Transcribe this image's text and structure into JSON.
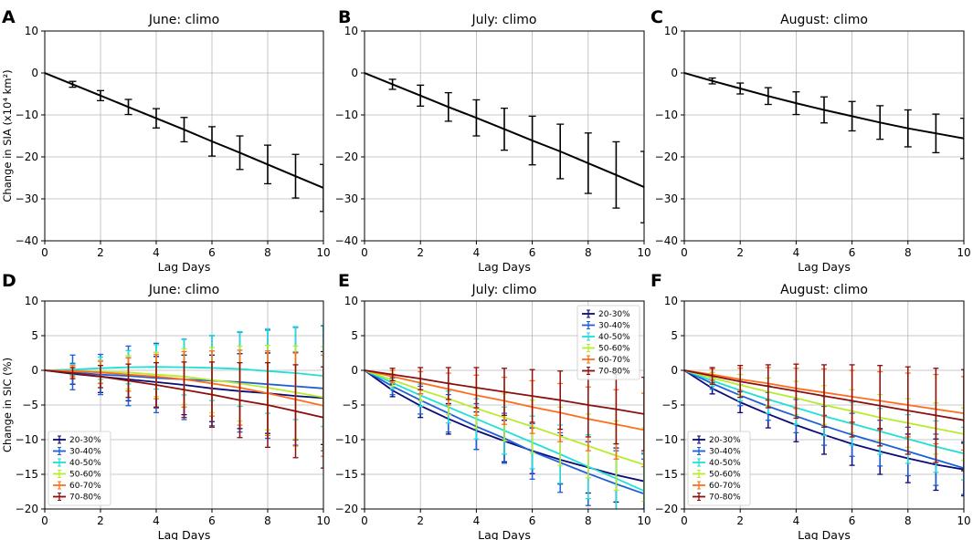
{
  "chart_data": [
    {
      "id": "A",
      "panel_label": "A",
      "type": "line",
      "title": "June: climo",
      "xlabel": "Lag Days",
      "ylabel": "Change in SIA (x10⁴ km²)",
      "xlim": [
        0,
        10
      ],
      "ylim": [
        -40,
        10
      ],
      "xticks": [
        "0",
        "2",
        "4",
        "6",
        "8",
        "10"
      ],
      "yticks": [
        "10",
        "0",
        "−10",
        "−20",
        "−30",
        "−40"
      ],
      "series": [
        {
          "name": "climo",
          "color": "#000000",
          "x": [
            0,
            1,
            2,
            3,
            4,
            5,
            6,
            7,
            8,
            9,
            10
          ],
          "y": [
            0,
            -2.7,
            -5.4,
            -8.1,
            -10.8,
            -13.5,
            -16.3,
            -19.0,
            -21.8,
            -24.6,
            -27.4
          ],
          "err": [
            0,
            0.7,
            1.2,
            1.8,
            2.3,
            2.9,
            3.5,
            4.0,
            4.6,
            5.2,
            5.6
          ]
        }
      ]
    },
    {
      "id": "B",
      "panel_label": "B",
      "type": "line",
      "title": "July: climo",
      "xlabel": "Lag Days",
      "ylabel": "",
      "xlim": [
        0,
        10
      ],
      "ylim": [
        -40,
        10
      ],
      "xticks": [
        "0",
        "2",
        "4",
        "6",
        "8",
        "10"
      ],
      "yticks": [
        "10",
        "0",
        "−10",
        "−20",
        "−30",
        "−40"
      ],
      "series": [
        {
          "name": "climo",
          "color": "#000000",
          "x": [
            0,
            1,
            2,
            3,
            4,
            5,
            6,
            7,
            8,
            9,
            10
          ],
          "y": [
            0,
            -2.7,
            -5.4,
            -8.1,
            -10.7,
            -13.4,
            -16.1,
            -18.7,
            -21.5,
            -24.3,
            -27.2
          ],
          "err": [
            0,
            1.2,
            2.5,
            3.4,
            4.3,
            5.0,
            5.8,
            6.5,
            7.2,
            7.9,
            8.5
          ]
        }
      ]
    },
    {
      "id": "C",
      "panel_label": "C",
      "type": "line",
      "title": "August: climo",
      "xlabel": "Lag Days",
      "ylabel": "",
      "xlim": [
        0,
        10
      ],
      "ylim": [
        -40,
        10
      ],
      "xticks": [
        "0",
        "2",
        "4",
        "6",
        "8",
        "10"
      ],
      "yticks": [
        "10",
        "0",
        "−10",
        "−20",
        "−30",
        "−40"
      ],
      "series": [
        {
          "name": "climo",
          "color": "#000000",
          "x": [
            0,
            1,
            2,
            3,
            4,
            5,
            6,
            7,
            8,
            9,
            10
          ],
          "y": [
            0,
            -1.9,
            -3.7,
            -5.5,
            -7.2,
            -8.8,
            -10.3,
            -11.8,
            -13.2,
            -14.4,
            -15.6
          ],
          "err": [
            0,
            0.7,
            1.3,
            2.0,
            2.7,
            3.1,
            3.5,
            4.0,
            4.4,
            4.6,
            4.8
          ]
        }
      ]
    },
    {
      "id": "D",
      "panel_label": "D",
      "type": "line",
      "title": "June: climo",
      "xlabel": "Lag Days",
      "ylabel": "Change in SIC (%)",
      "xlim": [
        0,
        10
      ],
      "ylim": [
        -20,
        10
      ],
      "xticks": [
        "0",
        "2",
        "4",
        "6",
        "8",
        "10"
      ],
      "yticks": [
        "10",
        "5",
        "0",
        "−5",
        "−10",
        "−15",
        "−20"
      ],
      "legend": "lower-left",
      "series": [
        {
          "name": "20-30%",
          "color": "#0b0b7a",
          "x": [
            0,
            1,
            2,
            3,
            4,
            5,
            6,
            7,
            8,
            9,
            10
          ],
          "y": [
            0,
            -0.5,
            -0.9,
            -1.3,
            -1.7,
            -2.1,
            -2.6,
            -3.0,
            -3.3,
            -3.7,
            -4.0
          ],
          "err": [
            0,
            1.5,
            2.3,
            3.1,
            3.7,
            4.3,
            4.8,
            5.4,
            5.8,
            6.3,
            6.7
          ]
        },
        {
          "name": "30-40%",
          "color": "#1e5fd8",
          "x": [
            0,
            1,
            2,
            3,
            4,
            5,
            6,
            7,
            8,
            9,
            10
          ],
          "y": [
            0,
            -0.3,
            -0.6,
            -0.8,
            -1.1,
            -1.3,
            -1.5,
            -1.7,
            -2.0,
            -2.3,
            -2.6
          ],
          "err": [
            0,
            2.5,
            2.9,
            4.3,
            5.0,
            5.8,
            6.5,
            7.2,
            7.8,
            8.5,
            9.0
          ]
        },
        {
          "name": "40-50%",
          "color": "#1fe0d6",
          "x": [
            0,
            1,
            2,
            3,
            4,
            5,
            6,
            7,
            8,
            9,
            10
          ],
          "y": [
            0,
            0.1,
            0.3,
            0.45,
            0.5,
            0.45,
            0.35,
            0.2,
            -0.1,
            -0.4,
            -0.8
          ],
          "err": [
            0,
            0.8,
            1.6,
            2.4,
            3.2,
            4.0,
            4.7,
            5.4,
            6.1,
            6.7,
            7.3
          ]
        },
        {
          "name": "50-60%",
          "color": "#b7ec2b",
          "x": [
            0,
            1,
            2,
            3,
            4,
            5,
            6,
            7,
            8,
            9,
            10
          ],
          "y": [
            0,
            -0.1,
            -0.2,
            -0.3,
            -0.6,
            -0.9,
            -1.4,
            -1.9,
            -2.5,
            -3.2,
            -3.9
          ],
          "err": [
            0,
            0.8,
            1.6,
            2.4,
            3.2,
            4.0,
            4.7,
            5.4,
            6.1,
            6.7,
            7.3
          ]
        },
        {
          "name": "60-70%",
          "color": "#ff6d1a",
          "x": [
            0,
            1,
            2,
            3,
            4,
            5,
            6,
            7,
            8,
            9,
            10
          ],
          "y": [
            0,
            -0.1,
            -0.3,
            -0.6,
            -0.9,
            -1.3,
            -1.9,
            -2.5,
            -3.3,
            -4.2,
            -5.1
          ],
          "err": [
            0,
            0.8,
            1.6,
            2.4,
            3.2,
            4.0,
            4.7,
            5.4,
            6.1,
            6.7,
            7.3
          ]
        },
        {
          "name": "70-80%",
          "color": "#8c0f0f",
          "x": [
            0,
            1,
            2,
            3,
            4,
            5,
            6,
            7,
            8,
            9,
            10
          ],
          "y": [
            0,
            -0.4,
            -0.9,
            -1.5,
            -2.1,
            -2.8,
            -3.5,
            -4.3,
            -5.0,
            -5.9,
            -6.8
          ],
          "err": [
            0,
            0.8,
            1.6,
            2.4,
            3.2,
            4.0,
            4.7,
            5.4,
            6.1,
            6.7,
            7.3
          ]
        }
      ]
    },
    {
      "id": "E",
      "panel_label": "E",
      "type": "line",
      "title": "July: climo",
      "xlabel": "Lag Days",
      "ylabel": "",
      "xlim": [
        0,
        10
      ],
      "ylim": [
        -20,
        10
      ],
      "xticks": [
        "0",
        "2",
        "4",
        "6",
        "8",
        "10"
      ],
      "yticks": [
        "10",
        "5",
        "0",
        "−5",
        "−10",
        "−15",
        "−20"
      ],
      "legend": "top-right",
      "series": [
        {
          "name": "20-30%",
          "color": "#0b0b7a",
          "x": [
            0,
            1,
            2,
            3,
            4,
            5,
            6,
            7,
            8,
            9,
            10
          ],
          "y": [
            0,
            -2.9,
            -5.1,
            -7.0,
            -8.7,
            -10.2,
            -11.6,
            -12.9,
            -14.0,
            -15.1,
            -16.0
          ],
          "err": [
            0,
            0.9,
            1.7,
            2.2,
            2.7,
            3.0,
            3.3,
            3.5,
            3.7,
            3.9,
            4.0
          ]
        },
        {
          "name": "30-40%",
          "color": "#1e5fd8",
          "x": [
            0,
            1,
            2,
            3,
            4,
            5,
            6,
            7,
            8,
            9,
            10
          ],
          "y": [
            0,
            -2.3,
            -4.3,
            -6.2,
            -8.1,
            -9.8,
            -11.7,
            -13.3,
            -14.9,
            -16.4,
            -17.8
          ],
          "err": [
            0,
            1.2,
            2.0,
            2.7,
            3.3,
            3.6,
            4.0,
            4.3,
            4.6,
            4.8,
            5.0
          ]
        },
        {
          "name": "40-50%",
          "color": "#1fe0d6",
          "x": [
            0,
            1,
            2,
            3,
            4,
            5,
            6,
            7,
            8,
            9,
            10
          ],
          "y": [
            0,
            -1.8,
            -3.6,
            -5.3,
            -7.0,
            -8.7,
            -10.4,
            -12.1,
            -13.9,
            -15.6,
            -17.4
          ],
          "err": [
            0,
            0.9,
            1.6,
            2.3,
            2.9,
            3.4,
            3.8,
            4.2,
            4.6,
            5.0,
            5.3
          ]
        },
        {
          "name": "50-60%",
          "color": "#b7ec2b",
          "x": [
            0,
            1,
            2,
            3,
            4,
            5,
            6,
            7,
            8,
            9,
            10
          ],
          "y": [
            0,
            -1.4,
            -2.8,
            -4.1,
            -5.5,
            -6.8,
            -8.1,
            -9.5,
            -10.9,
            -12.3,
            -13.6
          ],
          "err": [
            0,
            0.9,
            1.6,
            2.3,
            2.9,
            3.4,
            3.8,
            4.2,
            4.6,
            5.0,
            5.3
          ]
        },
        {
          "name": "60-70%",
          "color": "#ff6d1a",
          "x": [
            0,
            1,
            2,
            3,
            4,
            5,
            6,
            7,
            8,
            9,
            10
          ],
          "y": [
            0,
            -0.9,
            -1.8,
            -2.7,
            -3.6,
            -4.4,
            -5.3,
            -6.1,
            -7.0,
            -7.8,
            -8.6
          ],
          "err": [
            0,
            0.9,
            1.6,
            2.3,
            2.9,
            3.4,
            3.8,
            4.2,
            4.6,
            5.0,
            5.3
          ]
        },
        {
          "name": "70-80%",
          "color": "#8c0f0f",
          "x": [
            0,
            1,
            2,
            3,
            4,
            5,
            6,
            7,
            8,
            9,
            10
          ],
          "y": [
            0,
            -0.6,
            -1.2,
            -1.9,
            -2.5,
            -3.1,
            -3.7,
            -4.3,
            -5.0,
            -5.6,
            -6.3
          ],
          "err": [
            0,
            0.9,
            1.6,
            2.3,
            2.9,
            3.4,
            3.8,
            4.2,
            4.6,
            5.0,
            5.3
          ]
        }
      ]
    },
    {
      "id": "F",
      "panel_label": "F",
      "type": "line",
      "title": "August: climo",
      "xlabel": "Lag Days",
      "ylabel": "",
      "xlim": [
        0,
        10
      ],
      "ylim": [
        -20,
        10
      ],
      "xticks": [
        "0",
        "2",
        "4",
        "6",
        "8",
        "10"
      ],
      "yticks": [
        "10",
        "5",
        "0",
        "−5",
        "−10",
        "−15",
        "−20"
      ],
      "legend": "lower-left",
      "series": [
        {
          "name": "20-30%",
          "color": "#0b0b7a",
          "x": [
            0,
            1,
            2,
            3,
            4,
            5,
            6,
            7,
            8,
            9,
            10
          ],
          "y": [
            0,
            -2.6,
            -4.6,
            -6.3,
            -7.9,
            -9.3,
            -10.6,
            -11.7,
            -12.7,
            -13.6,
            -14.3
          ],
          "err": [
            0,
            0.8,
            1.5,
            2.0,
            2.4,
            2.8,
            3.1,
            3.3,
            3.5,
            3.7,
            3.8
          ]
        },
        {
          "name": "30-40%",
          "color": "#1e5fd8",
          "x": [
            0,
            1,
            2,
            3,
            4,
            5,
            6,
            7,
            8,
            9,
            10
          ],
          "y": [
            0,
            -1.9,
            -3.6,
            -5.2,
            -6.6,
            -8.0,
            -9.3,
            -10.5,
            -11.7,
            -12.9,
            -14.1
          ],
          "err": [
            0,
            0.8,
            1.5,
            2.0,
            2.4,
            2.8,
            3.1,
            3.3,
            3.5,
            3.7,
            3.8
          ]
        },
        {
          "name": "40-50%",
          "color": "#1fe0d6",
          "x": [
            0,
            1,
            2,
            3,
            4,
            5,
            6,
            7,
            8,
            9,
            10
          ],
          "y": [
            0,
            -1.5,
            -2.9,
            -4.2,
            -5.4,
            -6.6,
            -7.7,
            -8.8,
            -9.9,
            -11.0,
            -12.0
          ],
          "err": [
            0,
            0.8,
            1.5,
            2.0,
            2.4,
            2.8,
            3.1,
            3.3,
            3.5,
            3.7,
            3.8
          ]
        },
        {
          "name": "50-60%",
          "color": "#b7ec2b",
          "x": [
            0,
            1,
            2,
            3,
            4,
            5,
            6,
            7,
            8,
            9,
            10
          ],
          "y": [
            0,
            -1.1,
            -2.1,
            -3.1,
            -4.0,
            -5.0,
            -5.9,
            -6.8,
            -7.6,
            -8.4,
            -9.2
          ],
          "err": [
            0,
            0.8,
            1.5,
            2.0,
            2.4,
            2.8,
            3.1,
            3.3,
            3.5,
            3.7,
            3.8
          ]
        },
        {
          "name": "60-70%",
          "color": "#ff6d1a",
          "x": [
            0,
            1,
            2,
            3,
            4,
            5,
            6,
            7,
            8,
            9,
            10
          ],
          "y": [
            0,
            -0.6,
            -1.3,
            -1.9,
            -2.6,
            -3.2,
            -3.8,
            -4.4,
            -5.0,
            -5.6,
            -6.2
          ],
          "err": [
            0,
            0.8,
            1.6,
            2.3,
            2.9,
            3.4,
            3.8,
            4.2,
            4.6,
            5.0,
            5.3
          ]
        },
        {
          "name": "70-80%",
          "color": "#8c0f0f",
          "x": [
            0,
            1,
            2,
            3,
            4,
            5,
            6,
            7,
            8,
            9,
            10
          ],
          "y": [
            0,
            -0.8,
            -1.6,
            -2.3,
            -3.0,
            -3.7,
            -4.4,
            -5.1,
            -5.8,
            -6.5,
            -7.2
          ],
          "err": [
            0,
            1.2,
            2.3,
            3.1,
            3.9,
            4.5,
            5.2,
            5.8,
            6.3,
            6.8,
            7.3
          ]
        }
      ]
    }
  ]
}
